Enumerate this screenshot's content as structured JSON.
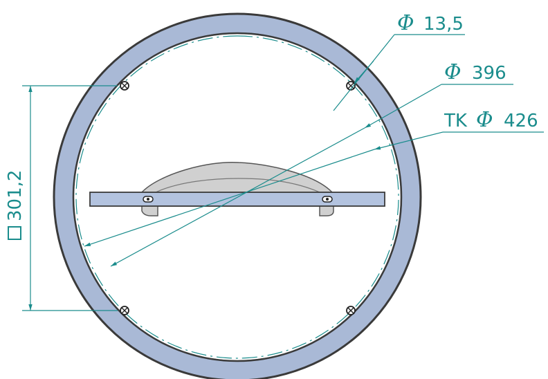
{
  "colors": {
    "ring_fill": "#a9b9d6",
    "ring_outline": "#2a2a2a",
    "dimension": "#1a8c8c",
    "centerline": "#1a8c8c",
    "bar_fill": "#b3c3df",
    "bracket_fill": "#d0d0d0"
  },
  "dimensions": {
    "hole_diameter": {
      "symbol": "Φ",
      "value": "13,5"
    },
    "inner_diameter": {
      "symbol": "Φ",
      "value": "396"
    },
    "bolt_circle": {
      "prefix": "TK",
      "symbol": "Φ",
      "value": "426"
    },
    "square_spacing": {
      "symbol": "□",
      "value": "301,2"
    }
  },
  "icons": {
    "bolt_hole": "crossed-circle-icon",
    "square_symbol": "square-icon"
  }
}
